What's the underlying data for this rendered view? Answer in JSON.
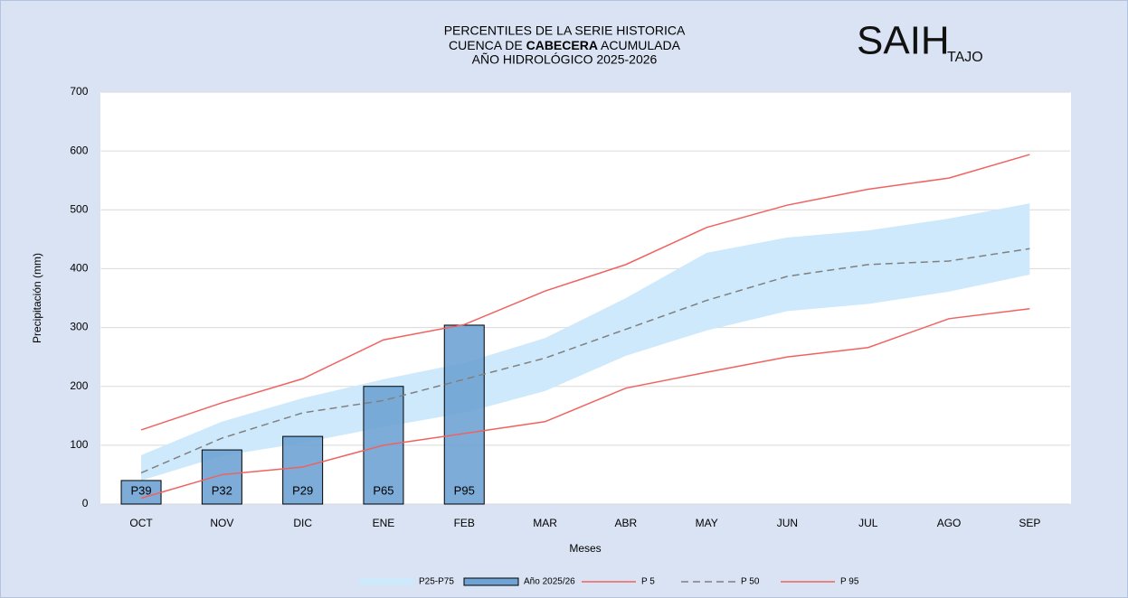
{
  "chart_data": {
    "type": "line",
    "title_lines": [
      "PERCENTILES DE LA SERIE HISTORICA",
      [
        "CUENCA DE ",
        "CABECERA",
        " ACUMULADA"
      ],
      "AÑO HIDROLÓGICO 2025-2026"
    ],
    "logo": [
      "SAIH",
      "TAJO"
    ],
    "x_label": "Meses",
    "y_label": "Precipitación (mm)",
    "categories": [
      "OCT",
      "NOV",
      "DIC",
      "ENE",
      "FEB",
      "MAR",
      "ABR",
      "MAY",
      "JUN",
      "JUL",
      "AGO",
      "SEP"
    ],
    "ylim": [
      0,
      700
    ],
    "yticks": [
      0,
      100,
      200,
      300,
      400,
      500,
      600,
      700
    ],
    "grid": true,
    "legend": "bottom",
    "band": {
      "name": "P25-P75",
      "color": "#cde9fb",
      "low": [
        40,
        82,
        104,
        131,
        155,
        192,
        252,
        295,
        328,
        340,
        361,
        390
      ],
      "high": [
        83,
        140,
        180,
        212,
        240,
        282,
        350,
        427,
        453,
        465,
        485,
        511
      ]
    },
    "bars": {
      "name": "Año 2025/26",
      "color": "#6fa3d4",
      "values": [
        40,
        92,
        115,
        200,
        304
      ],
      "annotations": [
        "P39",
        "P32",
        "P29",
        "P65",
        "P95"
      ]
    },
    "series": [
      {
        "name": "P 5",
        "color": "#f0625f",
        "dash": false,
        "values": [
          10,
          50,
          63,
          100,
          120,
          140,
          197,
          224,
          250,
          266,
          315,
          332
        ]
      },
      {
        "name": "P 50",
        "color": "#808080",
        "dash": true,
        "values": [
          53,
          112,
          155,
          176,
          212,
          248,
          297,
          346,
          387,
          407,
          413,
          434
        ]
      },
      {
        "name": "P 95",
        "color": "#f0625f",
        "dash": false,
        "values": [
          126,
          172,
          213,
          279,
          305,
          362,
          407,
          470,
          508,
          535,
          554,
          594
        ]
      }
    ]
  }
}
